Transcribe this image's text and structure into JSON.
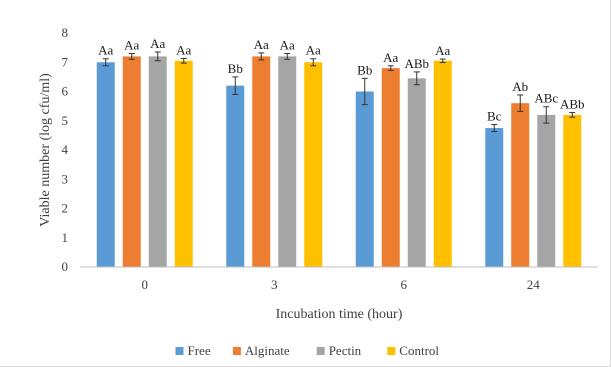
{
  "chart_data": {
    "type": "bar",
    "title": "",
    "xlabel": "Incubation time (hour)",
    "ylabel": "Viable number (log cfu/ml)",
    "ylim": [
      0,
      8
    ],
    "yticks": [
      "0",
      "1",
      "2",
      "3",
      "4",
      "5",
      "6",
      "7",
      "8"
    ],
    "categories": [
      "0",
      "3",
      "6",
      "24"
    ],
    "grid": false,
    "legend_position": "bottom",
    "series": [
      {
        "name": "Free",
        "color": "#5b9bd5",
        "values": [
          7.0,
          6.2,
          6.0,
          4.75
        ],
        "errors": [
          0.12,
          0.3,
          0.45,
          0.12
        ],
        "labels": [
          "Aa",
          "Bb",
          "Bb",
          "Bc"
        ]
      },
      {
        "name": "Alginate",
        "color": "#ed7d31",
        "values": [
          7.2,
          7.2,
          6.8,
          5.6
        ],
        "errors": [
          0.1,
          0.12,
          0.08,
          0.28
        ],
        "labels": [
          "Aa",
          "Aa",
          "Aa",
          "Ab"
        ]
      },
      {
        "name": "Pectin",
        "color": "#a5a5a5",
        "values": [
          7.2,
          7.2,
          6.45,
          5.2
        ],
        "errors": [
          0.15,
          0.1,
          0.22,
          0.28
        ],
        "labels": [
          "Aa",
          "Aa",
          "ABb",
          "ABc"
        ]
      },
      {
        "name": "Control",
        "color": "#ffc000",
        "values": [
          7.05,
          7.0,
          7.05,
          5.2
        ],
        "errors": [
          0.08,
          0.12,
          0.06,
          0.08
        ],
        "labels": [
          "Aa",
          "Aa",
          "Aa",
          "ABb"
        ]
      }
    ]
  }
}
